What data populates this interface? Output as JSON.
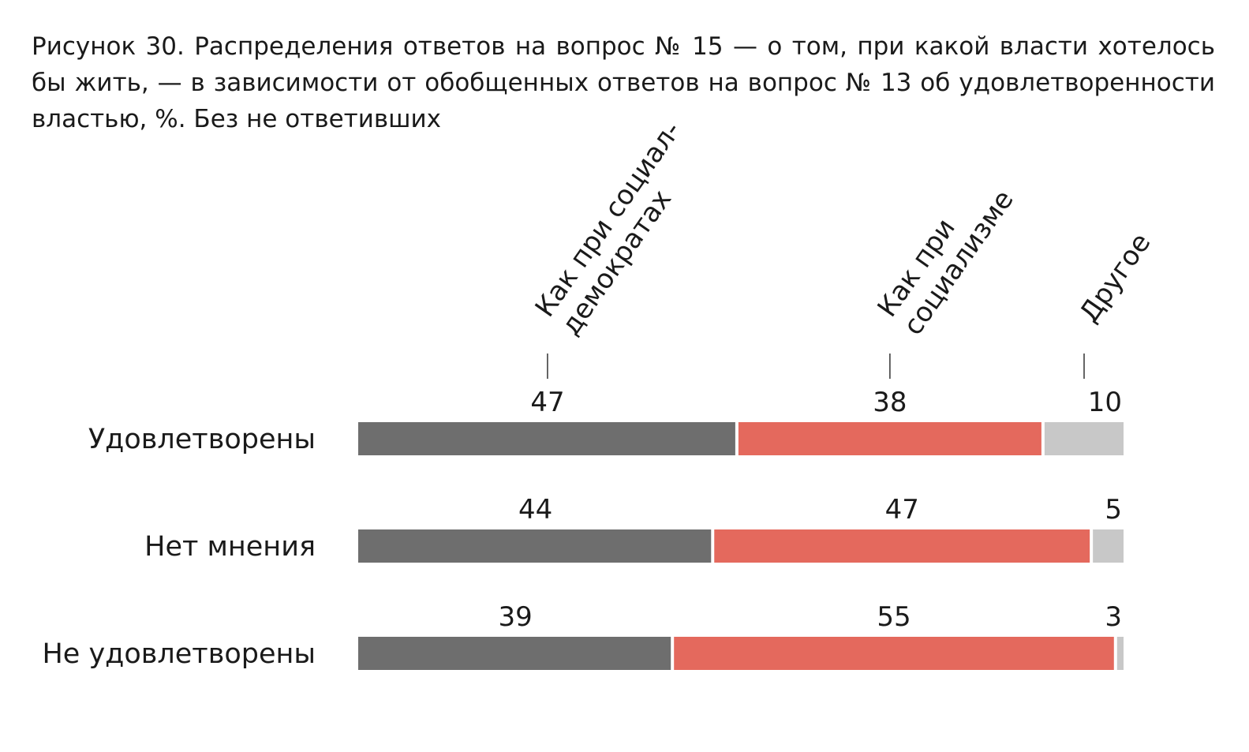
{
  "title": "Рисунок 30. Распределения ответов на вопрос № 15 — о том, при какой власти хоте­лось бы жить, — в зависимости от обобщенных ответов на вопрос № 13 об удовлетво­ренности властью, %. Без не ответивших",
  "chart_data": {
    "type": "bar",
    "orientation": "horizontal",
    "stacked": true,
    "title": "Рисунок 30. Распределения ответов на вопрос № 15 — о том, при какой власти хоте­лось бы жить, — в зависимости от обобщенных ответов на вопрос № 13 об удовлетво­ренности властью, %. Без не ответивших",
    "xlabel": "",
    "ylabel": "",
    "xlim": [
      0,
      95
    ],
    "grid": false,
    "legend": "rotated labels above first bar",
    "categories": [
      "Удовлетворены",
      "Нет мнения",
      "Не удовлетворены"
    ],
    "series": [
      {
        "name": "Как при социал-демократах",
        "label_lines": [
          "Как при социал-",
          "демократах"
        ],
        "color": "#6e6e6e",
        "values": [
          47,
          44,
          39
        ]
      },
      {
        "name": "Как при социализме",
        "label_lines": [
          "Как при",
          "социализме"
        ],
        "color": "#e4695d",
        "values": [
          38,
          47,
          55
        ]
      },
      {
        "name": "Другое",
        "label_lines": [
          "Другое"
        ],
        "color": "#c8c8c8",
        "values": [
          10,
          5,
          3
        ]
      }
    ]
  }
}
